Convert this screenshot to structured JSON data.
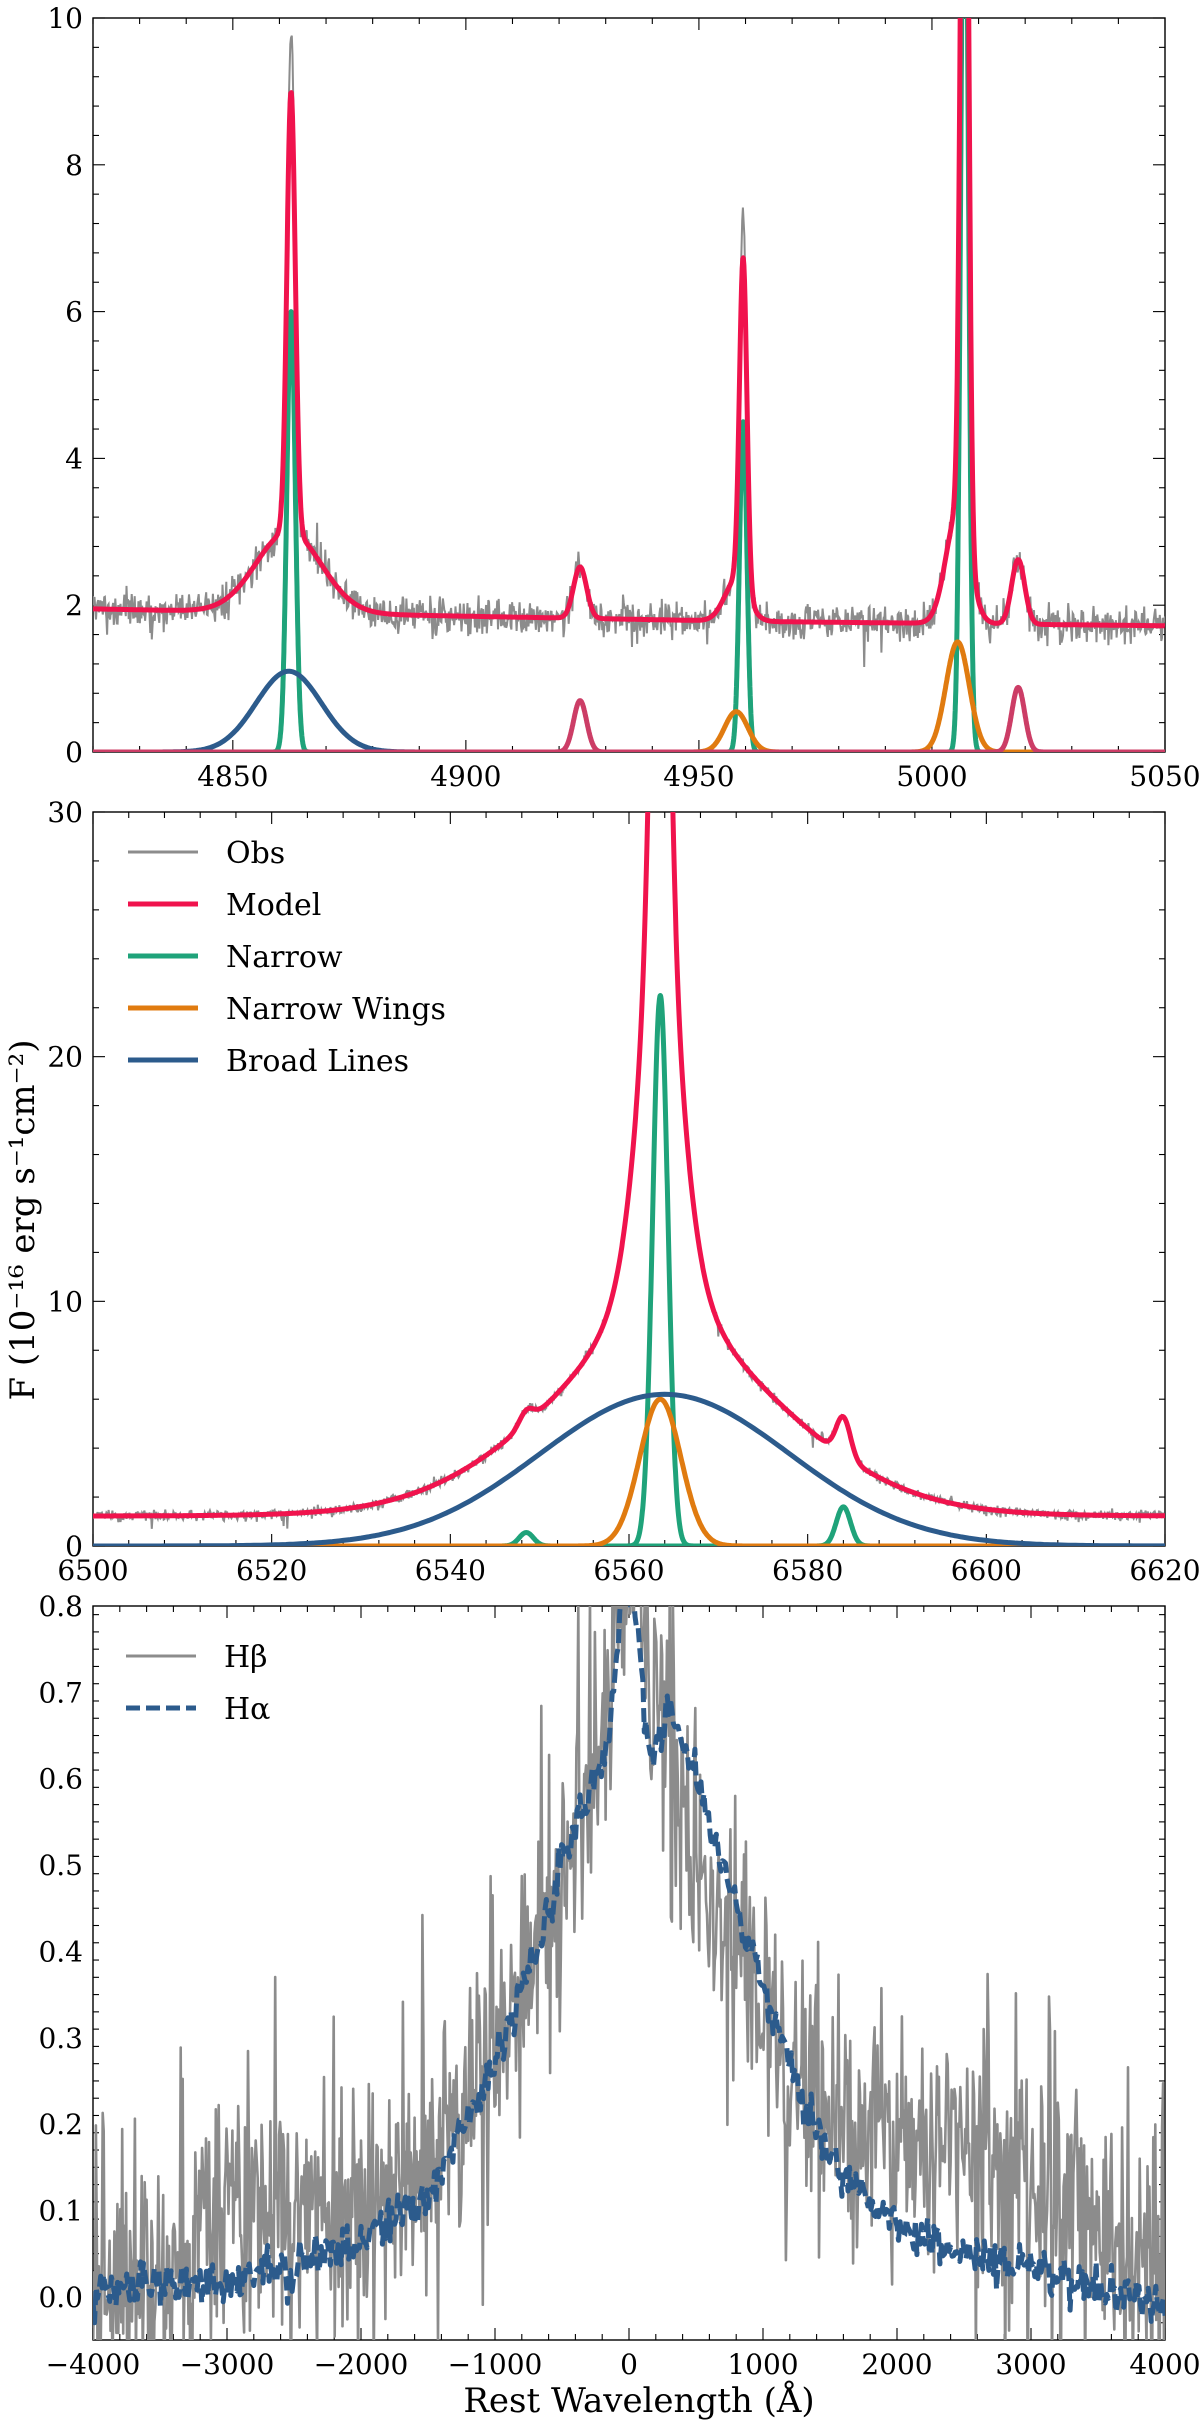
{
  "figure": {
    "ylabel": "F (10⁻¹⁶ erg s⁻¹cm⁻²)",
    "xlabel": "Rest Wavelength (Å)"
  },
  "colors": {
    "obs": "#8c8c8c",
    "model": "#f0134d",
    "narrow": "#1fa37a",
    "narrow_wings": "#e07b10",
    "broad": "#2c5b8c",
    "extra": "#cc3d66"
  },
  "chart_data": [
    {
      "id": "hbeta-oiii",
      "type": "line",
      "title": "",
      "xlabel": "",
      "ylabel": "",
      "xlim": [
        4820,
        5050
      ],
      "ylim": [
        0,
        10
      ],
      "xticks": [
        4850,
        4900,
        4950,
        5000,
        5050
      ],
      "yticks": [
        0,
        2,
        4,
        6,
        8,
        10
      ],
      "continuum": {
        "x": [
          4820,
          4900,
          4960,
          5050
        ],
        "y": [
          1.95,
          1.85,
          1.78,
          1.72
        ]
      },
      "components": [
        {
          "name": "Narrow Hβ",
          "kind": "narrow",
          "center": 4862.5,
          "sigma": 0.9,
          "amp": 6.0
        },
        {
          "name": "Broad Hβ",
          "kind": "broad",
          "center": 4862.0,
          "sigma": 7.0,
          "amp": 1.1
        },
        {
          "name": "Fe 4924",
          "kind": "extra",
          "center": 4924.5,
          "sigma": 1.4,
          "amp": 0.7
        },
        {
          "name": "Narrow [OIII] 4959",
          "kind": "narrow",
          "center": 4959.5,
          "sigma": 0.8,
          "amp": 4.5
        },
        {
          "name": "Wing [OIII] 4959",
          "kind": "narrow_wings",
          "center": 4958.0,
          "sigma": 2.5,
          "amp": 0.55
        },
        {
          "name": "Narrow [OIII] 5007",
          "kind": "narrow",
          "center": 5007.0,
          "sigma": 0.8,
          "amp": 13.5
        },
        {
          "name": "Wing [OIII] 5007",
          "kind": "narrow_wings",
          "center": 5005.5,
          "sigma": 2.5,
          "amp": 1.5
        },
        {
          "name": "Fe 5018",
          "kind": "extra",
          "center": 5018.5,
          "sigma": 1.4,
          "amp": 0.88
        }
      ],
      "obs_noise": 0.12,
      "obs_spike_scale": 1.08
    },
    {
      "id": "halpha-nii",
      "type": "line",
      "title": "",
      "xlabel": "",
      "ylabel": "",
      "xlim": [
        6500,
        6620
      ],
      "ylim": [
        0,
        30
      ],
      "xticks": [
        6500,
        6520,
        6540,
        6560,
        6580,
        6600,
        6620
      ],
      "yticks": [
        0,
        10,
        20,
        30
      ],
      "continuum": {
        "x": [
          6500,
          6620
        ],
        "y": [
          1.2,
          1.2
        ]
      },
      "components": [
        {
          "name": "Narrow [NII] 6548",
          "kind": "narrow",
          "center": 6548.5,
          "sigma": 0.8,
          "amp": 0.55
        },
        {
          "name": "Narrow Hα",
          "kind": "narrow",
          "center": 6563.5,
          "sigma": 0.85,
          "amp": 22.5
        },
        {
          "name": "Narrow [NII] 6584",
          "kind": "narrow",
          "center": 6584.0,
          "sigma": 0.8,
          "amp": 1.6
        },
        {
          "name": "Wing Hα",
          "kind": "narrow_wings",
          "center": 6563.5,
          "sigma": 2.3,
          "amp": 6.0
        },
        {
          "name": "Broad Hα",
          "kind": "broad",
          "center": 6564.0,
          "sigma": 14.0,
          "amp": 6.2
        }
      ],
      "model_extra": {
        "center": 6563.5,
        "hwhm": 2.6,
        "amp": 15.5
      },
      "obs_noise": 0.1,
      "legend": {
        "placement": "top-left",
        "entries": [
          {
            "label": "Obs",
            "kind": "obs"
          },
          {
            "label": "Model",
            "kind": "model"
          },
          {
            "label": "Narrow",
            "kind": "narrow"
          },
          {
            "label": "Narrow Wings",
            "kind": "narrow_wings"
          },
          {
            "label": "Broad Lines",
            "kind": "broad"
          }
        ]
      }
    },
    {
      "id": "velocity-profiles",
      "type": "line",
      "title": "",
      "xlabel": "Rest Wavelength (Å)",
      "ylabel": "",
      "xlim": [
        -4000,
        4000
      ],
      "ylim": [
        -0.05,
        0.8
      ],
      "xticks": [
        -4000,
        -3000,
        -2000,
        -1000,
        0,
        1000,
        2000,
        3000,
        4000
      ],
      "xtick_labels": [
        "−4000",
        "−3000",
        "−2000",
        "−1000",
        "0",
        "1000",
        "2000",
        "3000",
        "4000"
      ],
      "yticks": [
        0.0,
        0.1,
        0.2,
        0.3,
        0.4,
        0.5,
        0.6,
        0.7,
        0.8
      ],
      "ytick_labels": [
        "0.0",
        "0.1",
        "0.2",
        "0.3",
        "0.4",
        "0.5",
        "0.6",
        "0.7",
        "0.8"
      ],
      "series": [
        {
          "name": "Hβ",
          "kind": "obs",
          "style": "solid",
          "envelope": {
            "x": [
              -4000,
              -3500,
              -3000,
              -2500,
              -2000,
              -1500,
              -1000,
              -500,
              -250,
              0,
              250,
              500,
              1000,
              1500,
              2000,
              2500,
              3000,
              3500,
              4000
            ],
            "y": [
              0.0,
              0.02,
              0.12,
              0.1,
              0.08,
              0.14,
              0.28,
              0.5,
              0.62,
              0.85,
              0.68,
              0.5,
              0.32,
              0.2,
              0.18,
              0.2,
              0.14,
              0.08,
              0.05
            ]
          },
          "noise": 0.07
        },
        {
          "name": "Hα",
          "kind": "broad",
          "style": "dashed",
          "envelope": {
            "x": [
              -4000,
              -3000,
              -2000,
              -1500,
              -1000,
              -800,
              -500,
              -300,
              -150,
              -50,
              50,
              150,
              300,
              500,
              700,
              1000,
              1300,
              1600,
              2000,
              2500,
              3000,
              3500,
              4000
            ],
            "y": [
              0.01,
              0.02,
              0.06,
              0.12,
              0.27,
              0.35,
              0.5,
              0.58,
              0.64,
              0.82,
              0.8,
              0.62,
              0.68,
              0.6,
              0.5,
              0.36,
              0.22,
              0.14,
              0.08,
              0.05,
              0.03,
              0.01,
              -0.01
            ]
          },
          "noise": 0.012
        }
      ],
      "legend": {
        "placement": "top-left",
        "entries": [
          {
            "label": "Hβ",
            "kind": "obs",
            "style": "solid"
          },
          {
            "label": "Hα",
            "kind": "broad",
            "style": "dashed"
          }
        ]
      }
    }
  ]
}
